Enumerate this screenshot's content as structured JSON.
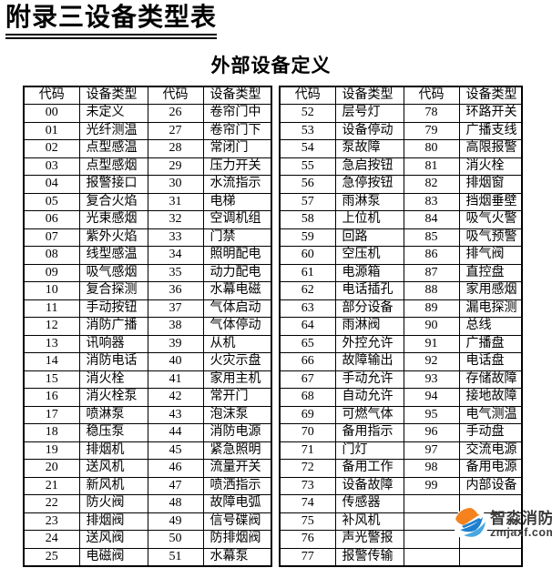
{
  "page": {
    "title": "附录三设备类型表",
    "subtitle": "外部设备定义"
  },
  "table": {
    "header_code": "代码",
    "header_type": "设备类型",
    "pairs": [
      {
        "rows": [
          {
            "code": "00",
            "type": "未定义"
          },
          {
            "code": "01",
            "type": "光纤测温"
          },
          {
            "code": "02",
            "type": "点型感温"
          },
          {
            "code": "03",
            "type": "点型感烟"
          },
          {
            "code": "04",
            "type": "报警接口"
          },
          {
            "code": "05",
            "type": "复合火焰"
          },
          {
            "code": "06",
            "type": "光束感烟"
          },
          {
            "code": "07",
            "type": "紫外火焰"
          },
          {
            "code": "08",
            "type": "线型感温"
          },
          {
            "code": "09",
            "type": "吸气感烟"
          },
          {
            "code": "10",
            "type": "复合探测"
          },
          {
            "code": "11",
            "type": "手动按钮"
          },
          {
            "code": "12",
            "type": "消防广播"
          },
          {
            "code": "13",
            "type": "讯响器"
          },
          {
            "code": "14",
            "type": "消防电话"
          },
          {
            "code": "15",
            "type": "消火栓"
          },
          {
            "code": "16",
            "type": "消火栓泵"
          },
          {
            "code": "17",
            "type": "喷淋泵"
          },
          {
            "code": "18",
            "type": "稳压泵"
          },
          {
            "code": "19",
            "type": "排烟机"
          },
          {
            "code": "20",
            "type": "送风机"
          },
          {
            "code": "21",
            "type": "新风机"
          },
          {
            "code": "22",
            "type": "防火阀"
          },
          {
            "code": "23",
            "type": "排烟阀"
          },
          {
            "code": "24",
            "type": "送风阀"
          },
          {
            "code": "25",
            "type": "电磁阀"
          }
        ]
      },
      {
        "rows": [
          {
            "code": "26",
            "type": "卷帘门中"
          },
          {
            "code": "27",
            "type": "卷帘门下"
          },
          {
            "code": "28",
            "type": "常闭门"
          },
          {
            "code": "29",
            "type": "压力开关"
          },
          {
            "code": "30",
            "type": "水流指示"
          },
          {
            "code": "31",
            "type": "电梯"
          },
          {
            "code": "32",
            "type": "空调机组"
          },
          {
            "code": "33",
            "type": "门禁"
          },
          {
            "code": "34",
            "type": "照明配电"
          },
          {
            "code": "35",
            "type": "动力配电"
          },
          {
            "code": "36",
            "type": "水幕电磁"
          },
          {
            "code": "37",
            "type": "气体启动"
          },
          {
            "code": "38",
            "type": "气体停动"
          },
          {
            "code": "39",
            "type": "从机"
          },
          {
            "code": "40",
            "type": "火灾示盘"
          },
          {
            "code": "41",
            "type": "家用主机"
          },
          {
            "code": "42",
            "type": "常开门"
          },
          {
            "code": "43",
            "type": "泡沫泵"
          },
          {
            "code": "44",
            "type": "消防电源"
          },
          {
            "code": "45",
            "type": "紧急照明"
          },
          {
            "code": "46",
            "type": "流量开关"
          },
          {
            "code": "47",
            "type": "喷洒指示"
          },
          {
            "code": "48",
            "type": "故障电弧"
          },
          {
            "code": "49",
            "type": "信号碟阀"
          },
          {
            "code": "50",
            "type": "防排烟阀"
          },
          {
            "code": "51",
            "type": "水幕泵"
          }
        ]
      },
      {
        "rows": [
          {
            "code": "52",
            "type": "层号灯"
          },
          {
            "code": "53",
            "type": "设备停动"
          },
          {
            "code": "54",
            "type": "泵故障"
          },
          {
            "code": "55",
            "type": "急启按钮"
          },
          {
            "code": "56",
            "type": "急停按钮"
          },
          {
            "code": "57",
            "type": "雨淋泵"
          },
          {
            "code": "58",
            "type": "上位机"
          },
          {
            "code": "59",
            "type": "回路"
          },
          {
            "code": "60",
            "type": "空压机"
          },
          {
            "code": "61",
            "type": "电源箱"
          },
          {
            "code": "62",
            "type": "电话插孔"
          },
          {
            "code": "63",
            "type": "部分设备"
          },
          {
            "code": "64",
            "type": "雨淋阀"
          },
          {
            "code": "65",
            "type": "外控允许"
          },
          {
            "code": "66",
            "type": "故障输出"
          },
          {
            "code": "67",
            "type": "手动允许"
          },
          {
            "code": "68",
            "type": "自动允许"
          },
          {
            "code": "69",
            "type": "可燃气体"
          },
          {
            "code": "70",
            "type": "备用指示"
          },
          {
            "code": "71",
            "type": "门灯"
          },
          {
            "code": "72",
            "type": "备用工作"
          },
          {
            "code": "73",
            "type": "设备故障"
          },
          {
            "code": "74",
            "type": "传感器"
          },
          {
            "code": "75",
            "type": "补风机"
          },
          {
            "code": "76",
            "type": "声光警报"
          },
          {
            "code": "77",
            "type": "报警传输"
          }
        ]
      },
      {
        "rows": [
          {
            "code": "78",
            "type": "环路开关"
          },
          {
            "code": "79",
            "type": "广播支线"
          },
          {
            "code": "80",
            "type": "高限报警"
          },
          {
            "code": "81",
            "type": "消火栓"
          },
          {
            "code": "82",
            "type": "排烟窗"
          },
          {
            "code": "83",
            "type": "挡烟垂壁"
          },
          {
            "code": "84",
            "type": "吸气火警"
          },
          {
            "code": "85",
            "type": "吸气预警"
          },
          {
            "code": "86",
            "type": "排气阀"
          },
          {
            "code": "87",
            "type": "直控盘"
          },
          {
            "code": "88",
            "type": "家用感烟"
          },
          {
            "code": "89",
            "type": "漏电探测"
          },
          {
            "code": "90",
            "type": "总线"
          },
          {
            "code": "91",
            "type": "广播盘"
          },
          {
            "code": "92",
            "type": "电话盘"
          },
          {
            "code": "93",
            "type": "存储故障"
          },
          {
            "code": "94",
            "type": "接地故障"
          },
          {
            "code": "95",
            "type": "电气测温"
          },
          {
            "code": "96",
            "type": "手动盘"
          },
          {
            "code": "97",
            "type": "交流电源"
          },
          {
            "code": "98",
            "type": "备用电源"
          },
          {
            "code": "99",
            "type": "内部设备"
          },
          {
            "code": "",
            "type": ""
          },
          {
            "code": "",
            "type": ""
          },
          {
            "code": "",
            "type": ""
          },
          {
            "code": "",
            "type": ""
          }
        ]
      }
    ]
  },
  "watermark": {
    "brand": "智淼消防",
    "url": "zmjaxf.com",
    "logo_orange": "#f5821f",
    "logo_blue": "#1d7fd0",
    "logo_blue_light": "#48a7e0"
  }
}
